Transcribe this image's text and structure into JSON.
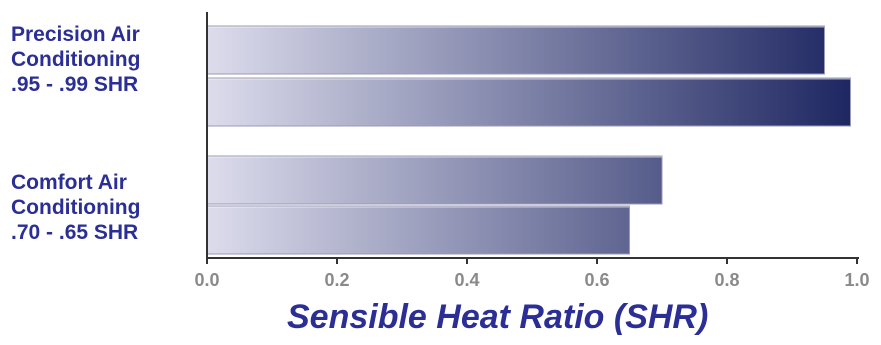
{
  "chart_data": {
    "type": "bar",
    "orientation": "horizontal",
    "groups": [
      {
        "label_lines": [
          "Precision Air",
          "Conditioning",
          ".95 - .99 SHR"
        ],
        "values": [
          0.95,
          0.99
        ]
      },
      {
        "label_lines": [
          "Comfort Air",
          "Conditioning",
          ".70 - .65 SHR"
        ],
        "values": [
          0.7,
          0.65
        ]
      }
    ],
    "xlabel": "Sensible Heat Ratio (SHR)",
    "xlim": [
      0.0,
      1.0
    ],
    "xticks": [
      "0.0",
      "0.2",
      "0.4",
      "0.6",
      "0.8",
      "1.0"
    ],
    "grid": false,
    "colors": {
      "bar_light": "#dcdcec",
      "bar_dark": "#1c2560",
      "label": "#2b2f95",
      "tick": "#8a8a8a",
      "axis": "#333333"
    }
  }
}
